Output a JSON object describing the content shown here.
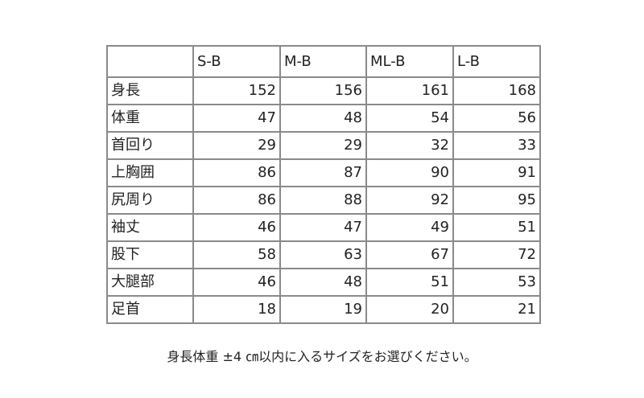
{
  "table": {
    "columns": [
      "",
      "S-B",
      "M-B",
      "ML-B",
      "L-B"
    ],
    "rows": [
      {
        "label": "身長",
        "values": [
          "152",
          "156",
          "161",
          "168"
        ]
      },
      {
        "label": "体重",
        "values": [
          "47",
          "48",
          "54",
          "56"
        ]
      },
      {
        "label": "首回り",
        "values": [
          "29",
          "29",
          "32",
          "33"
        ]
      },
      {
        "label": "上胸囲",
        "values": [
          "86",
          "87",
          "90",
          "91"
        ]
      },
      {
        "label": "尻周り",
        "values": [
          "86",
          "88",
          "92",
          "95"
        ]
      },
      {
        "label": "袖丈",
        "values": [
          "46",
          "47",
          "49",
          "51"
        ]
      },
      {
        "label": "股下",
        "values": [
          "58",
          "63",
          "67",
          "72"
        ]
      },
      {
        "label": "大腿部",
        "values": [
          "46",
          "48",
          "51",
          "53"
        ]
      },
      {
        "label": "足首",
        "values": [
          "18",
          "19",
          "20",
          "21"
        ]
      }
    ]
  },
  "caption": "身長体重 ±4 ㎝以内に入るサイズをお選びください。"
}
